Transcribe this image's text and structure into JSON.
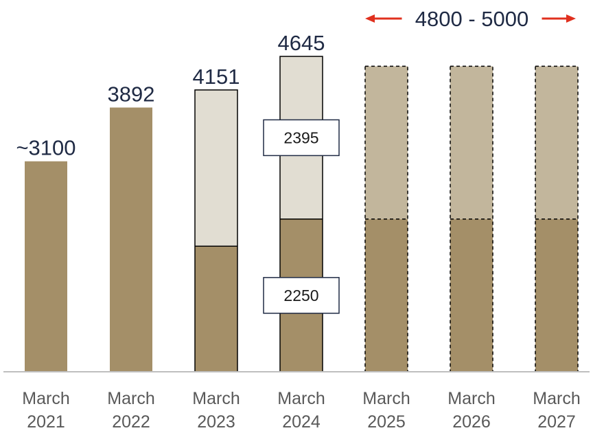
{
  "chart_data": {
    "type": "bar",
    "stacked": true,
    "categories": [
      [
        "March",
        "2021"
      ],
      [
        "March",
        "2022"
      ],
      [
        "March",
        "2023"
      ],
      [
        "March",
        "2024"
      ],
      [
        "March",
        "2025"
      ],
      [
        "March",
        "2026"
      ],
      [
        "March",
        "2027"
      ]
    ],
    "series": [
      {
        "values": [
          3100,
          3892,
          1850,
          2250,
          2250,
          2250,
          2250
        ]
      },
      {
        "values": [
          0,
          0,
          2301,
          2395,
          2250,
          2250,
          2250
        ]
      }
    ],
    "projected": [
      false,
      false,
      false,
      false,
      true,
      true,
      true
    ],
    "total_labels": [
      "~3100",
      "3892",
      "4151",
      "4645",
      "",
      "",
      ""
    ],
    "segment_boxes": [
      {
        "category_index": 3,
        "series_index": 1,
        "text": "2395"
      },
      {
        "category_index": 3,
        "series_index": 0,
        "text": "2250"
      }
    ],
    "range_annotation": {
      "text": "4800 - 5000",
      "from_index": 4,
      "to_index": 6
    },
    "ylim": [
      0,
      5000
    ],
    "grid": false,
    "legend": "none",
    "colors": {
      "base": "#a48f68",
      "upper_actual": "#e1ddd2",
      "upper_projected": "#c2b69c",
      "outline": "#000000",
      "arrow": "#e0301e",
      "axis": "#bfbfbf"
    }
  }
}
